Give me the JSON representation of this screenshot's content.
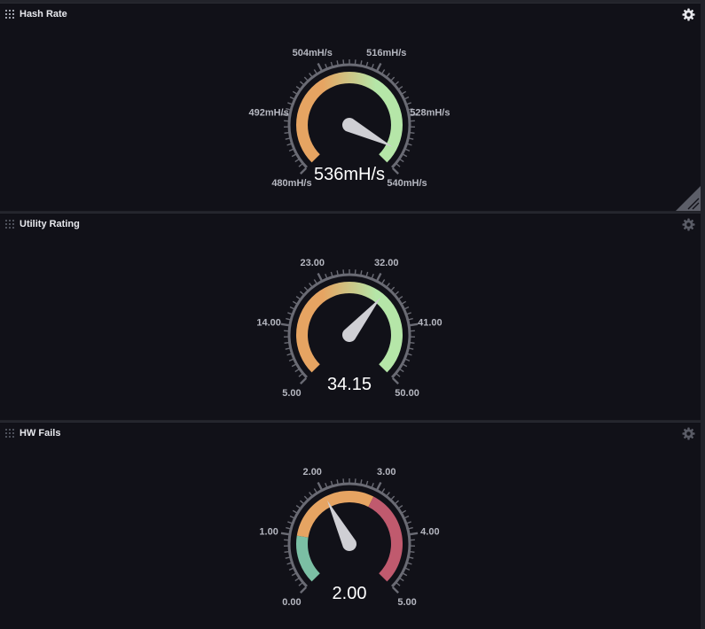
{
  "colors": {
    "orange": "#e6a462",
    "green": "#b5e6a8",
    "teal": "#7bbfa4",
    "red": "#c05a6e",
    "ring": "#6a6b74",
    "needle": "#cfcfd4",
    "label": "#b5b7c0"
  },
  "panels": [
    {
      "title": "Hash Rate",
      "gear_icon": "gear-icon",
      "header_active": true,
      "resize_icon": "resize-handle-icon",
      "gauge": {
        "min": 480,
        "max": 540,
        "value": 536,
        "value_text": "536mH/s",
        "tick_labels": [
          "480mH/s",
          "492mH/s",
          "504mH/s",
          "516mH/s",
          "528mH/s",
          "540mH/s"
        ],
        "color_mode": "gradient",
        "gradient": [
          "#e6a462",
          "#b5e6a8"
        ]
      }
    },
    {
      "title": "Utility Rating",
      "gear_icon": "gear-icon",
      "header_active": false,
      "gauge": {
        "min": 5,
        "max": 50,
        "value": 34.15,
        "value_text": "34.15",
        "tick_labels": [
          "5.00",
          "14.00",
          "23.00",
          "32.00",
          "41.00",
          "50.00"
        ],
        "color_mode": "gradient",
        "gradient": [
          "#e6a462",
          "#b5e6a8"
        ]
      }
    },
    {
      "title": "HW Fails",
      "gear_icon": "gear-icon",
      "header_active": false,
      "gauge": {
        "min": 0,
        "max": 5,
        "value": 2,
        "value_text": "2.00",
        "tick_labels": [
          "0.00",
          "1.00",
          "2.00",
          "3.00",
          "4.00",
          "5.00"
        ],
        "color_mode": "bands",
        "bands": [
          {
            "from": 0,
            "to": 1,
            "color": "#7bbfa4"
          },
          {
            "from": 1,
            "to": 3,
            "color": "#e6a462"
          },
          {
            "from": 3,
            "to": 5,
            "color": "#c05a6e"
          }
        ]
      }
    }
  ]
}
